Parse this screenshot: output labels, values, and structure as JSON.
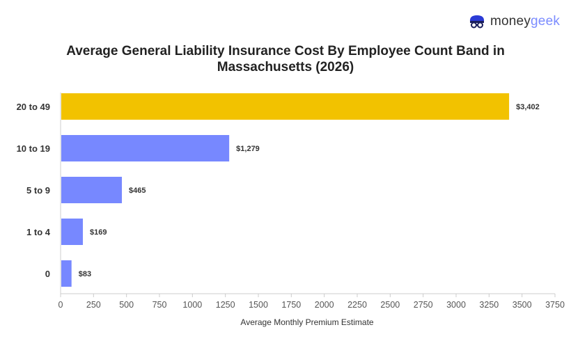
{
  "logo": {
    "part1": "money",
    "part2": "geek"
  },
  "chart_data": {
    "type": "bar",
    "orientation": "horizontal",
    "title": "Average General Liability Insurance Cost By Employee Count Band in Massachusetts (2026)",
    "xlabel": "Average Monthly Premium Estimate",
    "ylabel": "",
    "categories": [
      "20 to 49",
      "10 to 19",
      "5 to 9",
      "1 to 4",
      "0"
    ],
    "values": [
      3402,
      1279,
      465,
      169,
      83
    ],
    "data_labels": [
      "$3,402",
      "$1,279",
      "$465",
      "$169",
      "$83"
    ],
    "highlight_index": 0,
    "colors": {
      "highlight": "#f2c200",
      "default": "#7788ff"
    },
    "xlim": [
      0,
      3750
    ],
    "xticks": [
      0,
      250,
      500,
      750,
      1000,
      1250,
      1500,
      1750,
      2000,
      2250,
      2500,
      2750,
      3000,
      3250,
      3500,
      3750
    ],
    "grid": false
  }
}
